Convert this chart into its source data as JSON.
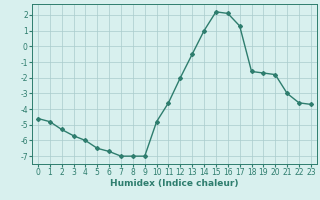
{
  "x": [
    0,
    1,
    2,
    3,
    4,
    5,
    6,
    7,
    8,
    9,
    10,
    11,
    12,
    13,
    14,
    15,
    16,
    17,
    18,
    19,
    20,
    21,
    22,
    23
  ],
  "y": [
    -4.6,
    -4.8,
    -5.3,
    -5.7,
    -6.0,
    -6.5,
    -6.7,
    -7.0,
    -7.0,
    -7.0,
    -4.8,
    -3.6,
    -2.0,
    -0.5,
    1.0,
    2.2,
    2.1,
    1.3,
    -1.6,
    -1.7,
    -1.8,
    -3.0,
    -3.6,
    -3.7
  ],
  "xlabel": "Humidex (Indice chaleur)",
  "xlim": [
    -0.5,
    23.5
  ],
  "ylim": [
    -7.5,
    2.7
  ],
  "yticks": [
    -7,
    -6,
    -5,
    -4,
    -3,
    -2,
    -1,
    0,
    1,
    2
  ],
  "xticks": [
    0,
    1,
    2,
    3,
    4,
    5,
    6,
    7,
    8,
    9,
    10,
    11,
    12,
    13,
    14,
    15,
    16,
    17,
    18,
    19,
    20,
    21,
    22,
    23
  ],
  "line_color": "#2e7d6e",
  "marker": "D",
  "marker_size": 2.0,
  "bg_color": "#d8f0ee",
  "grid_color": "#aacccc",
  "line_width": 1.0,
  "xlabel_fontsize": 6.5,
  "tick_fontsize": 5.5
}
